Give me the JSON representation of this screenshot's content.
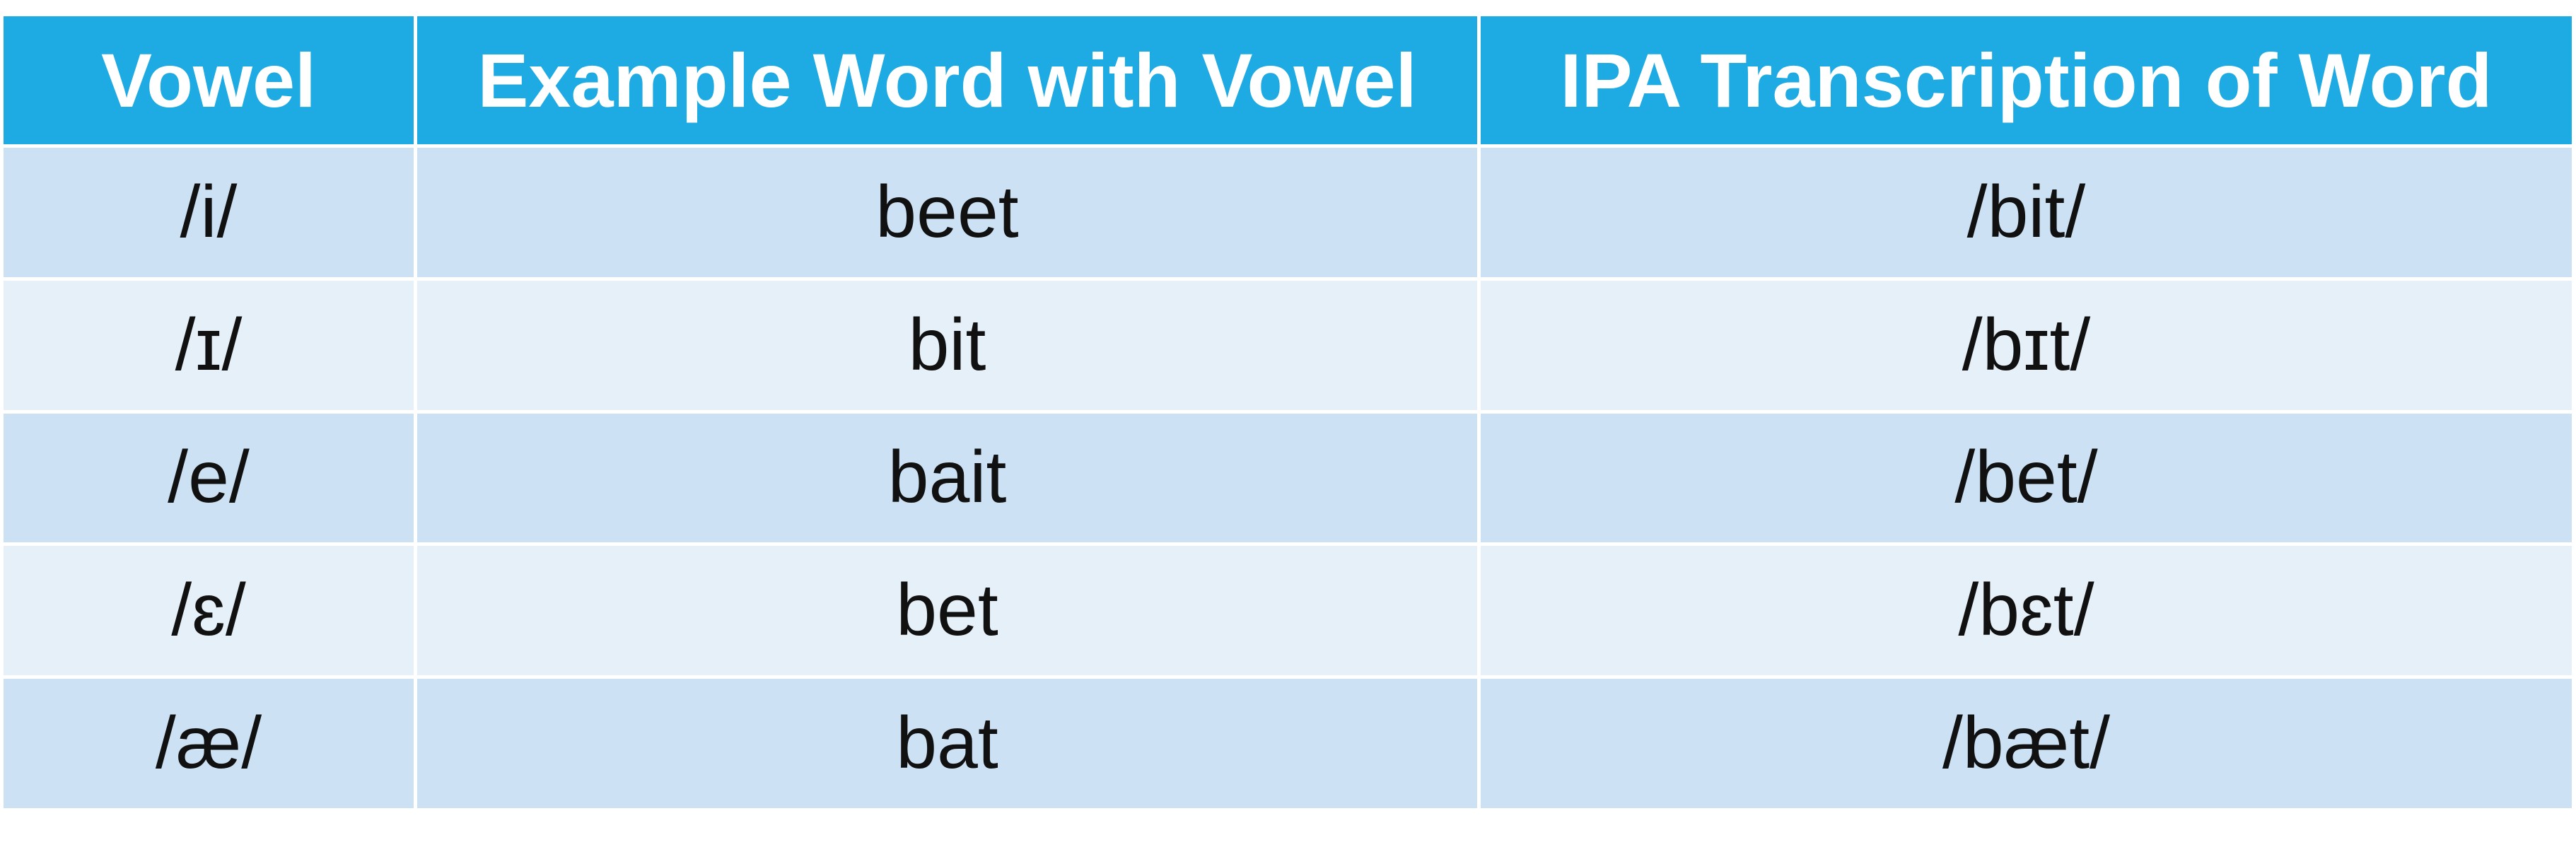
{
  "table": {
    "header": [
      "Vowel",
      "Example Word with Vowel",
      "IPA Transcription of Word"
    ],
    "rows": [
      [
        "/i/",
        "beet",
        "/bit/"
      ],
      [
        "/ɪ/",
        "bit",
        "/bɪt/"
      ],
      [
        "/e/",
        "bait",
        "/bet/"
      ],
      [
        "/ɛ/",
        "bet",
        "/bɛt/"
      ],
      [
        "/æ/",
        "bat",
        "/bæt/"
      ]
    ]
  }
}
